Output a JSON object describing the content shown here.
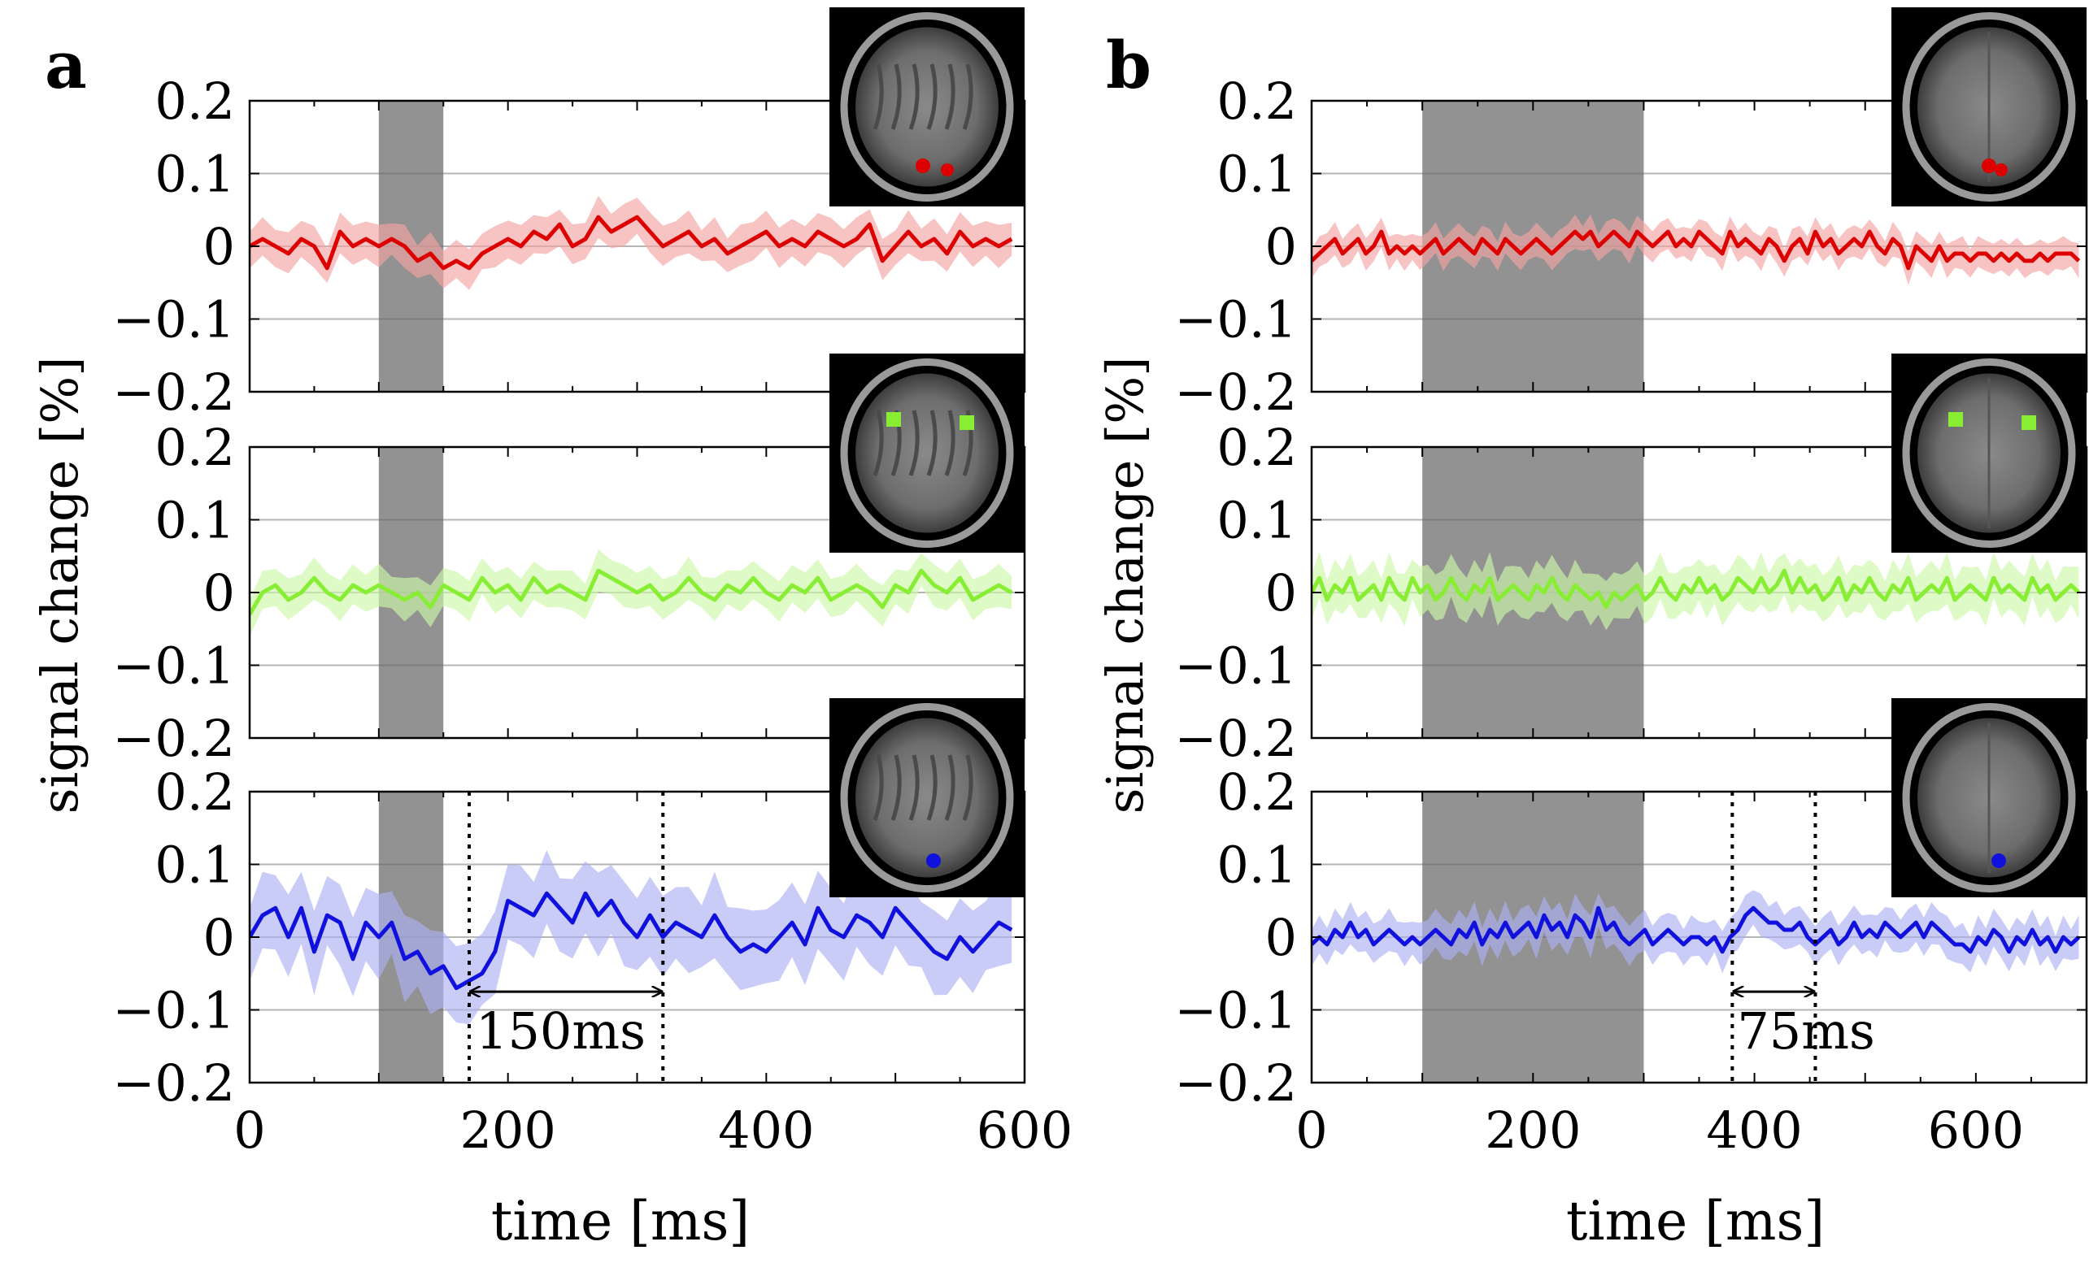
{
  "panels": [
    {
      "id": "a",
      "letter": "a",
      "xlabel": "time [ms]",
      "ylabel": "signal change [%]",
      "xlim": [
        0,
        600
      ],
      "xticks": [
        0,
        200,
        400,
        600
      ],
      "ylim": [
        -0.2,
        0.2
      ],
      "yticks": [
        -0.2,
        -0.1,
        0,
        0.1,
        0.2
      ],
      "ytick_labels": [
        "−0.2",
        "−0.1",
        "0",
        "0.1",
        "0.2"
      ],
      "stimulus_window": [
        100,
        150
      ],
      "subplots": [
        {
          "name": "red",
          "color": "#dd0000",
          "band_color": "#f2a3a3",
          "roi": "occipital red cluster"
        },
        {
          "name": "green",
          "color": "#88ee33",
          "band_color": "#cdf7a8",
          "roi": "two green squares"
        },
        {
          "name": "blue",
          "color": "#1111dd",
          "band_color": "#aeb0f5",
          "roi": "blue occipital cluster",
          "markers": [
            170,
            320
          ],
          "annotation": {
            "label": "150ms",
            "from": 170,
            "to": 320
          }
        }
      ]
    },
    {
      "id": "b",
      "letter": "b",
      "xlabel": "time [ms]",
      "ylabel": "signal change [%]",
      "xlim": [
        0,
        700
      ],
      "xticks": [
        0,
        200,
        400,
        600
      ],
      "ylim": [
        -0.2,
        0.2
      ],
      "yticks": [
        -0.2,
        -0.1,
        0,
        0.1,
        0.2
      ],
      "ytick_labels": [
        "−0.2",
        "−0.1",
        "0",
        "0.1",
        "0.2"
      ],
      "stimulus_window": [
        100,
        300
      ],
      "subplots": [
        {
          "name": "red",
          "color": "#dd0000",
          "band_color": "#f2a3a3",
          "roi": "occipital red cluster"
        },
        {
          "name": "green",
          "color": "#88ee33",
          "band_color": "#cdf7a8",
          "roi": "two green squares"
        },
        {
          "name": "blue",
          "color": "#1111dd",
          "band_color": "#aeb0f5",
          "roi": "blue occipital cluster",
          "markers": [
            380,
            455
          ],
          "annotation": {
            "label": "75ms",
            "from": 380,
            "to": 455
          }
        }
      ]
    }
  ],
  "chart_data": [
    {
      "type": "line",
      "panel": "a",
      "xlabel": "time [ms]",
      "ylabel": "signal change [%]",
      "xlim": [
        0,
        600
      ],
      "ylim": [
        -0.2,
        0.2
      ],
      "series": [
        {
          "name": "red ROI",
          "x_step": 10,
          "values": [
            0.0,
            0.01,
            0.0,
            -0.01,
            0.01,
            0.0,
            -0.03,
            0.02,
            0.0,
            0.01,
            0.0,
            0.01,
            0.0,
            -0.02,
            -0.01,
            -0.03,
            -0.02,
            -0.03,
            -0.01,
            0.0,
            0.01,
            0.0,
            0.02,
            0.01,
            0.03,
            0.0,
            0.01,
            0.04,
            0.02,
            0.03,
            0.04,
            0.02,
            0.0,
            0.01,
            0.02,
            0.0,
            0.01,
            -0.01,
            0.0,
            0.01,
            0.02,
            0.0,
            0.01,
            0.0,
            0.02,
            0.01,
            0.0,
            0.01,
            0.03,
            -0.02,
            0.0,
            0.02,
            0.0,
            0.01,
            -0.01,
            0.02,
            0.0,
            0.01,
            0.0,
            0.01
          ],
          "band": 0.025
        },
        {
          "name": "green ROI",
          "x_step": 10,
          "values": [
            -0.03,
            0.0,
            0.01,
            -0.01,
            0.0,
            0.02,
            0.0,
            -0.01,
            0.01,
            0.0,
            0.01,
            0.0,
            -0.01,
            0.0,
            -0.02,
            0.01,
            0.0,
            -0.01,
            0.02,
            0.0,
            0.01,
            -0.01,
            0.02,
            0.0,
            0.01,
            0.0,
            -0.01,
            0.03,
            0.02,
            0.01,
            0.0,
            0.01,
            -0.01,
            0.0,
            0.02,
            0.0,
            -0.01,
            0.01,
            0.0,
            0.02,
            0.0,
            -0.01,
            0.01,
            0.0,
            0.02,
            -0.01,
            0.0,
            0.01,
            0.0,
            -0.02,
            0.01,
            0.0,
            0.03,
            0.01,
            0.0,
            0.02,
            -0.01,
            0.0,
            0.01,
            0.0
          ],
          "band": 0.025
        },
        {
          "name": "blue ROI",
          "x_step": 10,
          "values": [
            0.0,
            0.03,
            0.04,
            0.0,
            0.04,
            -0.02,
            0.03,
            0.02,
            -0.03,
            0.02,
            0.0,
            0.02,
            -0.03,
            -0.02,
            -0.05,
            -0.04,
            -0.07,
            -0.06,
            -0.05,
            -0.02,
            0.05,
            0.04,
            0.03,
            0.06,
            0.04,
            0.02,
            0.06,
            0.03,
            0.05,
            0.02,
            0.0,
            0.03,
            0.0,
            0.02,
            0.01,
            0.0,
            0.03,
            0.0,
            -0.02,
            -0.01,
            -0.02,
            0.0,
            0.02,
            -0.01,
            0.04,
            0.01,
            0.0,
            0.03,
            0.02,
            0.0,
            0.04,
            0.02,
            0.0,
            -0.02,
            -0.03,
            0.0,
            -0.02,
            0.0,
            0.02,
            0.01
          ],
          "band": 0.05
        }
      ],
      "stimulus_window": [
        100,
        150
      ],
      "annotations": [
        {
          "label": "150ms",
          "from": 170,
          "to": 320
        }
      ]
    },
    {
      "type": "line",
      "panel": "b",
      "xlabel": "time [ms]",
      "ylabel": "signal change [%]",
      "xlim": [
        0,
        700
      ],
      "ylim": [
        -0.2,
        0.2
      ],
      "series": [
        {
          "name": "red ROI",
          "x_step": 7,
          "values": [
            -0.02,
            -0.01,
            0.0,
            0.01,
            -0.01,
            0.0,
            0.01,
            -0.01,
            0.0,
            0.02,
            -0.01,
            0.0,
            -0.01,
            0.0,
            -0.01,
            0.0,
            0.01,
            -0.01,
            0.0,
            0.01,
            0.0,
            -0.01,
            0.01,
            0.0,
            -0.01,
            0.01,
            0.0,
            -0.01,
            0.0,
            0.01,
            0.0,
            -0.01,
            0.0,
            0.01,
            0.02,
            0.01,
            0.02,
            0.0,
            0.01,
            0.02,
            0.01,
            0.0,
            0.02,
            0.01,
            0.0,
            0.01,
            0.02,
            0.0,
            0.01,
            0.0,
            0.02,
            0.01,
            0.0,
            -0.01,
            0.02,
            0.0,
            0.01,
            0.0,
            -0.01,
            0.01,
            0.0,
            -0.02,
            0.0,
            0.01,
            -0.01,
            0.02,
            0.0,
            0.01,
            -0.01,
            0.0,
            0.01,
            0.0,
            0.02,
            0.0,
            -0.01,
            0.01,
            0.0,
            -0.03,
            0.0,
            -0.01,
            -0.02,
            0.0,
            -0.02,
            -0.01,
            -0.01,
            -0.02,
            -0.01,
            -0.01,
            -0.02,
            -0.01,
            -0.02,
            -0.01,
            -0.02,
            -0.02,
            -0.01,
            -0.02,
            -0.01,
            -0.01,
            -0.01,
            -0.02
          ],
          "band": 0.02
        },
        {
          "name": "green ROI",
          "x_step": 7,
          "values": [
            0.0,
            0.02,
            -0.01,
            0.01,
            0.0,
            0.02,
            -0.01,
            0.0,
            0.01,
            -0.01,
            0.02,
            0.0,
            -0.01,
            0.02,
            0.0,
            0.01,
            -0.01,
            0.0,
            0.02,
            0.0,
            -0.01,
            0.01,
            0.0,
            0.02,
            -0.01,
            0.0,
            0.01,
            0.0,
            -0.01,
            0.01,
            0.0,
            0.02,
            0.0,
            -0.01,
            0.01,
            0.0,
            -0.01,
            0.0,
            -0.02,
            0.0,
            -0.01,
            0.0,
            0.01,
            -0.01,
            0.0,
            0.02,
            0.0,
            -0.01,
            0.01,
            0.0,
            0.02,
            0.0,
            0.01,
            -0.01,
            0.0,
            0.02,
            0.01,
            0.0,
            0.02,
            0.0,
            0.01,
            0.03,
            0.0,
            0.02,
            0.0,
            0.01,
            -0.01,
            0.0,
            0.02,
            -0.01,
            0.01,
            0.0,
            0.02,
            0.0,
            -0.01,
            0.01,
            0.0,
            0.02,
            -0.01,
            0.0,
            0.01,
            0.0,
            0.02,
            -0.01,
            0.0,
            0.01,
            0.0,
            -0.01,
            0.02,
            0.0,
            0.01,
            0.0,
            -0.01,
            0.02,
            0.0,
            0.01,
            -0.01,
            0.0,
            0.01,
            0.0
          ],
          "band": 0.03
        },
        {
          "name": "blue ROI",
          "x_step": 7,
          "values": [
            -0.01,
            0.0,
            -0.01,
            0.01,
            0.0,
            0.02,
            0.0,
            0.01,
            -0.01,
            0.0,
            0.01,
            0.0,
            -0.01,
            0.0,
            -0.01,
            0.0,
            0.01,
            0.0,
            -0.01,
            0.01,
            0.0,
            0.02,
            -0.01,
            0.01,
            0.0,
            0.02,
            0.0,
            0.01,
            0.02,
            0.0,
            0.03,
            0.01,
            0.02,
            0.0,
            0.03,
            0.02,
            0.0,
            0.04,
            0.01,
            0.02,
            0.0,
            -0.01,
            0.0,
            0.01,
            -0.01,
            0.0,
            0.01,
            0.0,
            -0.01,
            0.0,
            0.0,
            -0.01,
            0.0,
            -0.02,
            0.0,
            0.01,
            0.03,
            0.04,
            0.03,
            0.02,
            0.02,
            0.01,
            0.01,
            0.02,
            0.0,
            -0.01,
            0.0,
            0.01,
            -0.01,
            0.0,
            0.02,
            0.0,
            0.01,
            0.0,
            0.02,
            0.01,
            0.0,
            0.01,
            0.02,
            0.0,
            0.02,
            0.01,
            0.0,
            -0.01,
            -0.01,
            -0.02,
            0.0,
            -0.01,
            0.01,
            0.0,
            -0.02,
            0.0,
            -0.01,
            0.01,
            -0.01,
            0.0,
            -0.02,
            0.0,
            -0.01,
            0.0
          ],
          "band": 0.025
        }
      ],
      "stimulus_window": [
        100,
        300
      ],
      "annotations": [
        {
          "label": "75ms",
          "from": 380,
          "to": 455
        }
      ]
    }
  ]
}
